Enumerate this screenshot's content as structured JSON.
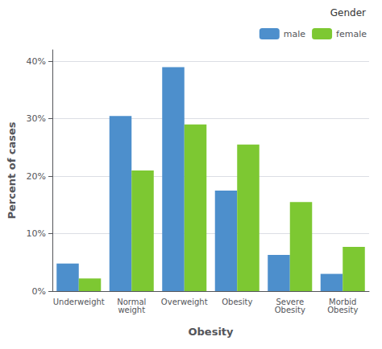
{
  "chart_data": {
    "type": "bar",
    "categories": [
      "Underweight",
      "Normal\nweight",
      "Overweight",
      "Obesity",
      "Severe\nObesity",
      "Morbid\nObesity"
    ],
    "series": [
      {
        "name": "male",
        "color": "#4d8fcc",
        "values": [
          4.8,
          30.5,
          39.0,
          17.5,
          6.3,
          3.0
        ]
      },
      {
        "name": "female",
        "color": "#7dc832",
        "values": [
          2.2,
          21.0,
          29.0,
          25.5,
          15.5,
          7.7
        ]
      }
    ],
    "xlabel": "Obesity",
    "ylabel": "Percent of cases",
    "ylim": [
      0,
      42
    ],
    "yticks": [
      {
        "value": 0,
        "label": "0%"
      },
      {
        "value": 10,
        "label": "10%"
      },
      {
        "value": 20,
        "label": "20%"
      },
      {
        "value": 30,
        "label": "30%"
      },
      {
        "value": 40,
        "label": "40%"
      }
    ],
    "grid": true,
    "legend": "upper right",
    "legend_title": "Gender"
  }
}
